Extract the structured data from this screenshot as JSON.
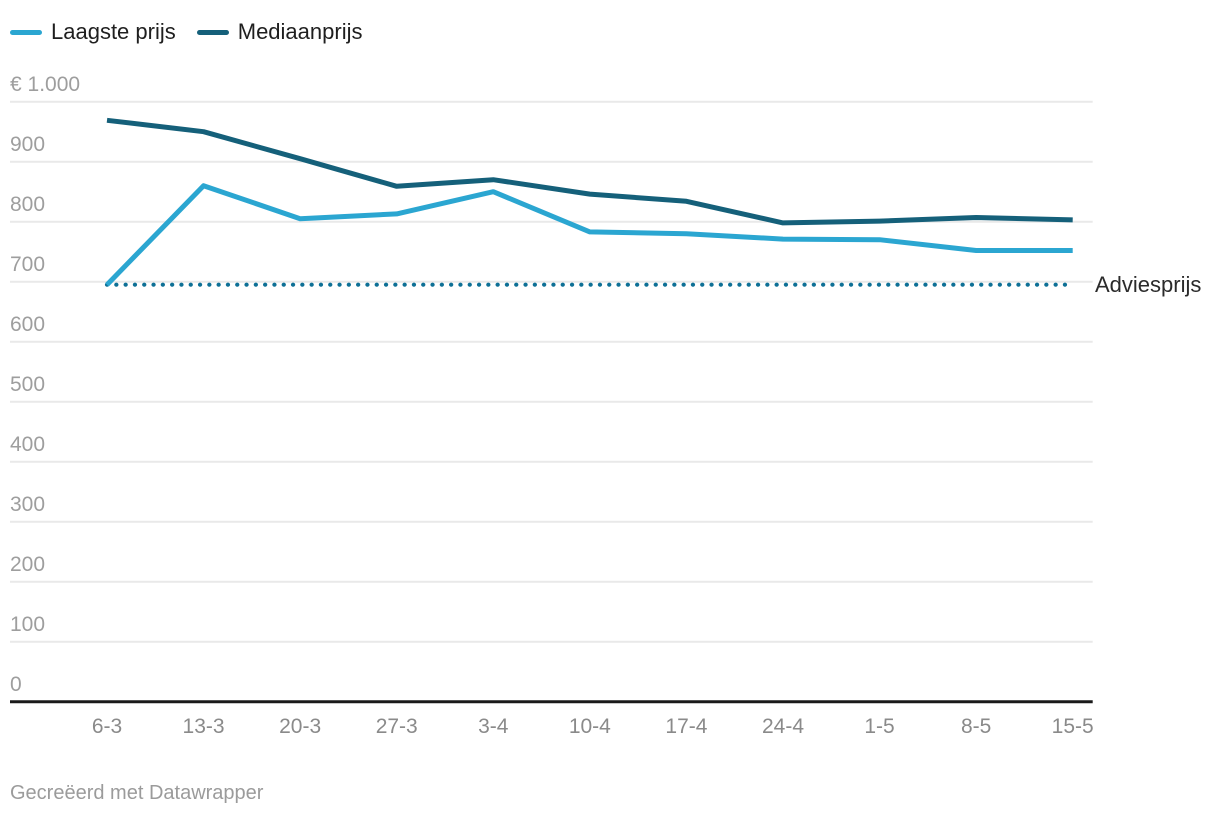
{
  "legend": {
    "items": [
      {
        "label": "Laagste prijs",
        "color": "#2ba6d1"
      },
      {
        "label": "Mediaanprijs",
        "color": "#15607a"
      }
    ]
  },
  "chart_data": {
    "type": "line",
    "x": [
      "6-3",
      "13-3",
      "20-3",
      "27-3",
      "3-4",
      "10-4",
      "17-4",
      "24-4",
      "1-5",
      "8-5",
      "15-5"
    ],
    "series": [
      {
        "name": "Laagste prijs",
        "color": "#2ba6d1",
        "values": [
          695,
          860,
          805,
          813,
          850,
          783,
          780,
          771,
          770,
          752,
          752
        ]
      },
      {
        "name": "Mediaanprijs",
        "color": "#15607a",
        "values": [
          969,
          950,
          905,
          859,
          870,
          846,
          834,
          798,
          801,
          807,
          803
        ]
      }
    ],
    "reference_line": {
      "label": "Adviesprijs",
      "value": 695,
      "color": "#0e7096",
      "style": "dotted"
    },
    "yticks": [
      0,
      100,
      200,
      300,
      400,
      500,
      600,
      700,
      800,
      900,
      1000
    ],
    "ytick_top_label": "€ 1.000",
    "ylim": [
      0,
      1000
    ],
    "grid": "horizontal",
    "legend_position": "top-left",
    "title": "",
    "xlabel": "",
    "ylabel": ""
  },
  "colors": {
    "grid": "#e9e9e9",
    "axis_zero_line": "#1a1a1a",
    "y_tick_text": "#9e9e9e",
    "x_tick_text": "#8a8a8a",
    "legend_text": "#1f1f1f",
    "background": "#ffffff"
  },
  "footer": {
    "credit": "Gecreëerd met Datawrapper"
  }
}
